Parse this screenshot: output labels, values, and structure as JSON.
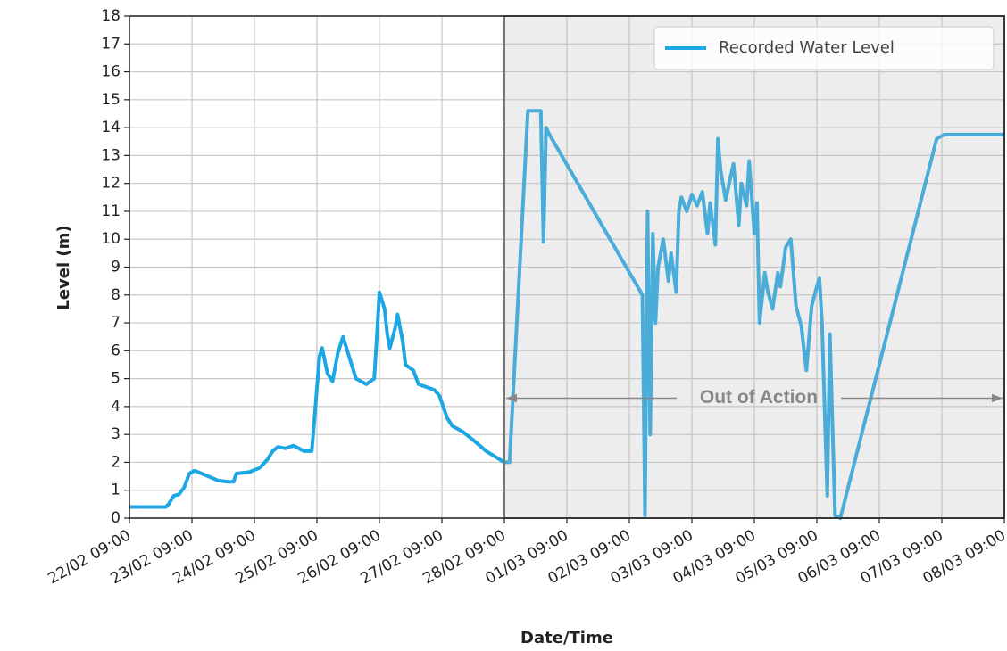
{
  "chart_data": {
    "type": "line",
    "xlabel": "Date/Time",
    "ylabel": "Level (m)",
    "x": [
      "22/02 09:00",
      "22/02 23:00",
      "23/02 00:00",
      "23/02 02:00",
      "23/02 04:00",
      "23/02 06:00",
      "23/02 08:00",
      "23/02 10:00",
      "23/02 14:00",
      "23/02 19:00",
      "23/02 23:00",
      "24/02 01:00",
      "24/02 02:00",
      "24/02 07:00",
      "24/02 11:00",
      "24/02 14:00",
      "24/02 16:00",
      "24/02 18:00",
      "24/02 21:00",
      "25/02 00:00",
      "25/02 04:00",
      "25/02 07:00",
      "25/02 08:00",
      "25/02 10:00",
      "25/02 11:00",
      "25/02 13:00",
      "25/02 15:00",
      "25/02 17:00",
      "25/02 19:00",
      "25/02 22:00",
      "26/02 00:00",
      "26/02 04:00",
      "26/02 07:00",
      "26/02 08:00",
      "26/02 09:00",
      "26/02 11:00",
      "26/02 12:00",
      "26/02 13:00",
      "26/02 15:00",
      "26/02 16:00",
      "26/02 18:00",
      "26/02 19:00",
      "26/02 22:00",
      "27/02 00:00",
      "27/02 06:00",
      "27/02 08:00",
      "27/02 11:00",
      "27/02 13:00",
      "27/02 17:00",
      "27/02 21:00",
      "28/02 02:00",
      "28/02 09:00",
      "28/02 11:00",
      "28/02 18:00",
      "28/02 20:00",
      "28/02 23:00",
      "01/03 00:00",
      "01/03 01:00",
      "01/03 02:00",
      "02/03 14:00",
      "02/03 15:00",
      "02/03 16:00",
      "02/03 17:00",
      "02/03 18:00",
      "02/03 19:00",
      "02/03 20:00",
      "02/03 22:00",
      "03/03 00:00",
      "03/03 01:00",
      "03/03 03:00",
      "03/03 04:00",
      "03/03 05:00",
      "03/03 07:00",
      "03/03 09:00",
      "03/03 11:00",
      "03/03 13:00",
      "03/03 15:00",
      "03/03 16:00",
      "03/03 18:00",
      "03/03 19:00",
      "03/03 20:00",
      "03/03 22:00",
      "04/03 00:00",
      "04/03 01:00",
      "04/03 03:00",
      "04/03 04:00",
      "04/03 06:00",
      "04/03 07:00",
      "04/03 09:00",
      "04/03 10:00",
      "04/03 11:00",
      "04/03 13:00",
      "04/03 14:00",
      "04/03 16:00",
      "04/03 18:00",
      "04/03 19:00",
      "04/03 21:00",
      "04/03 23:00",
      "05/03 01:00",
      "05/03 03:00",
      "05/03 05:00",
      "05/03 07:00",
      "05/03 09:00",
      "05/03 10:00",
      "05/03 11:00",
      "05/03 13:00",
      "05/03 14:00",
      "05/03 16:00",
      "05/03 18:00",
      "07/03 07:00",
      "07/03 10:00",
      "08/03 09:00"
    ],
    "series": [
      {
        "name": "Recorded Water Level",
        "color": "#1ca6e4",
        "values": [
          0.4,
          0.4,
          0.5,
          0.8,
          0.85,
          1.1,
          1.6,
          1.7,
          1.55,
          1.35,
          1.3,
          1.3,
          1.6,
          1.65,
          1.8,
          2.1,
          2.4,
          2.55,
          2.5,
          2.6,
          2.4,
          2.4,
          3.5,
          5.8,
          6.1,
          5.2,
          4.9,
          5.9,
          6.5,
          5.6,
          5.0,
          4.8,
          5.0,
          6.5,
          8.1,
          7.5,
          6.6,
          6.1,
          6.8,
          7.3,
          6.3,
          5.5,
          5.3,
          4.8,
          4.6,
          4.4,
          3.6,
          3.3,
          3.1,
          2.8,
          2.4,
          2.0,
          2.0,
          14.6,
          14.6,
          14.6,
          9.9,
          14.0,
          13.8,
          8.0,
          0.1,
          11.0,
          3.0,
          10.2,
          7.0,
          9.0,
          10.0,
          8.5,
          9.5,
          8.1,
          11.0,
          11.5,
          11.0,
          11.6,
          11.2,
          11.7,
          10.2,
          11.3,
          9.8,
          13.6,
          12.5,
          11.4,
          12.3,
          12.7,
          10.5,
          12.0,
          11.2,
          12.8,
          10.2,
          11.3,
          7.0,
          8.8,
          8.2,
          7.5,
          8.8,
          8.3,
          9.7,
          10.0,
          7.6,
          6.9,
          5.3,
          7.6,
          8.3,
          8.6,
          7.0,
          0.8,
          6.6,
          0.1,
          0.0,
          13.6,
          13.75,
          13.75
        ]
      }
    ],
    "xlim": [
      "22/02 09:00",
      "08/03 09:00"
    ],
    "xticks": [
      "22/02 09:00",
      "23/02 09:00",
      "24/02 09:00",
      "25/02 09:00",
      "26/02 09:00",
      "27/02 09:00",
      "28/02 09:00",
      "01/03 09:00",
      "02/03 09:00",
      "03/03 09:00",
      "04/03 09:00",
      "05/03 09:00",
      "06/03 09:00",
      "07/03 09:00",
      "08/03 09:00"
    ],
    "ylim": [
      0,
      18
    ],
    "yticks": [
      0,
      1,
      2,
      3,
      4,
      5,
      6,
      7,
      8,
      9,
      10,
      11,
      12,
      13,
      14,
      15,
      16,
      17,
      18
    ],
    "grid": true,
    "legend": "upper right",
    "shaded_region": {
      "start": "28/02 09:00",
      "end": "08/03 09:00",
      "label": "Out of Action",
      "y": 4.3
    }
  }
}
